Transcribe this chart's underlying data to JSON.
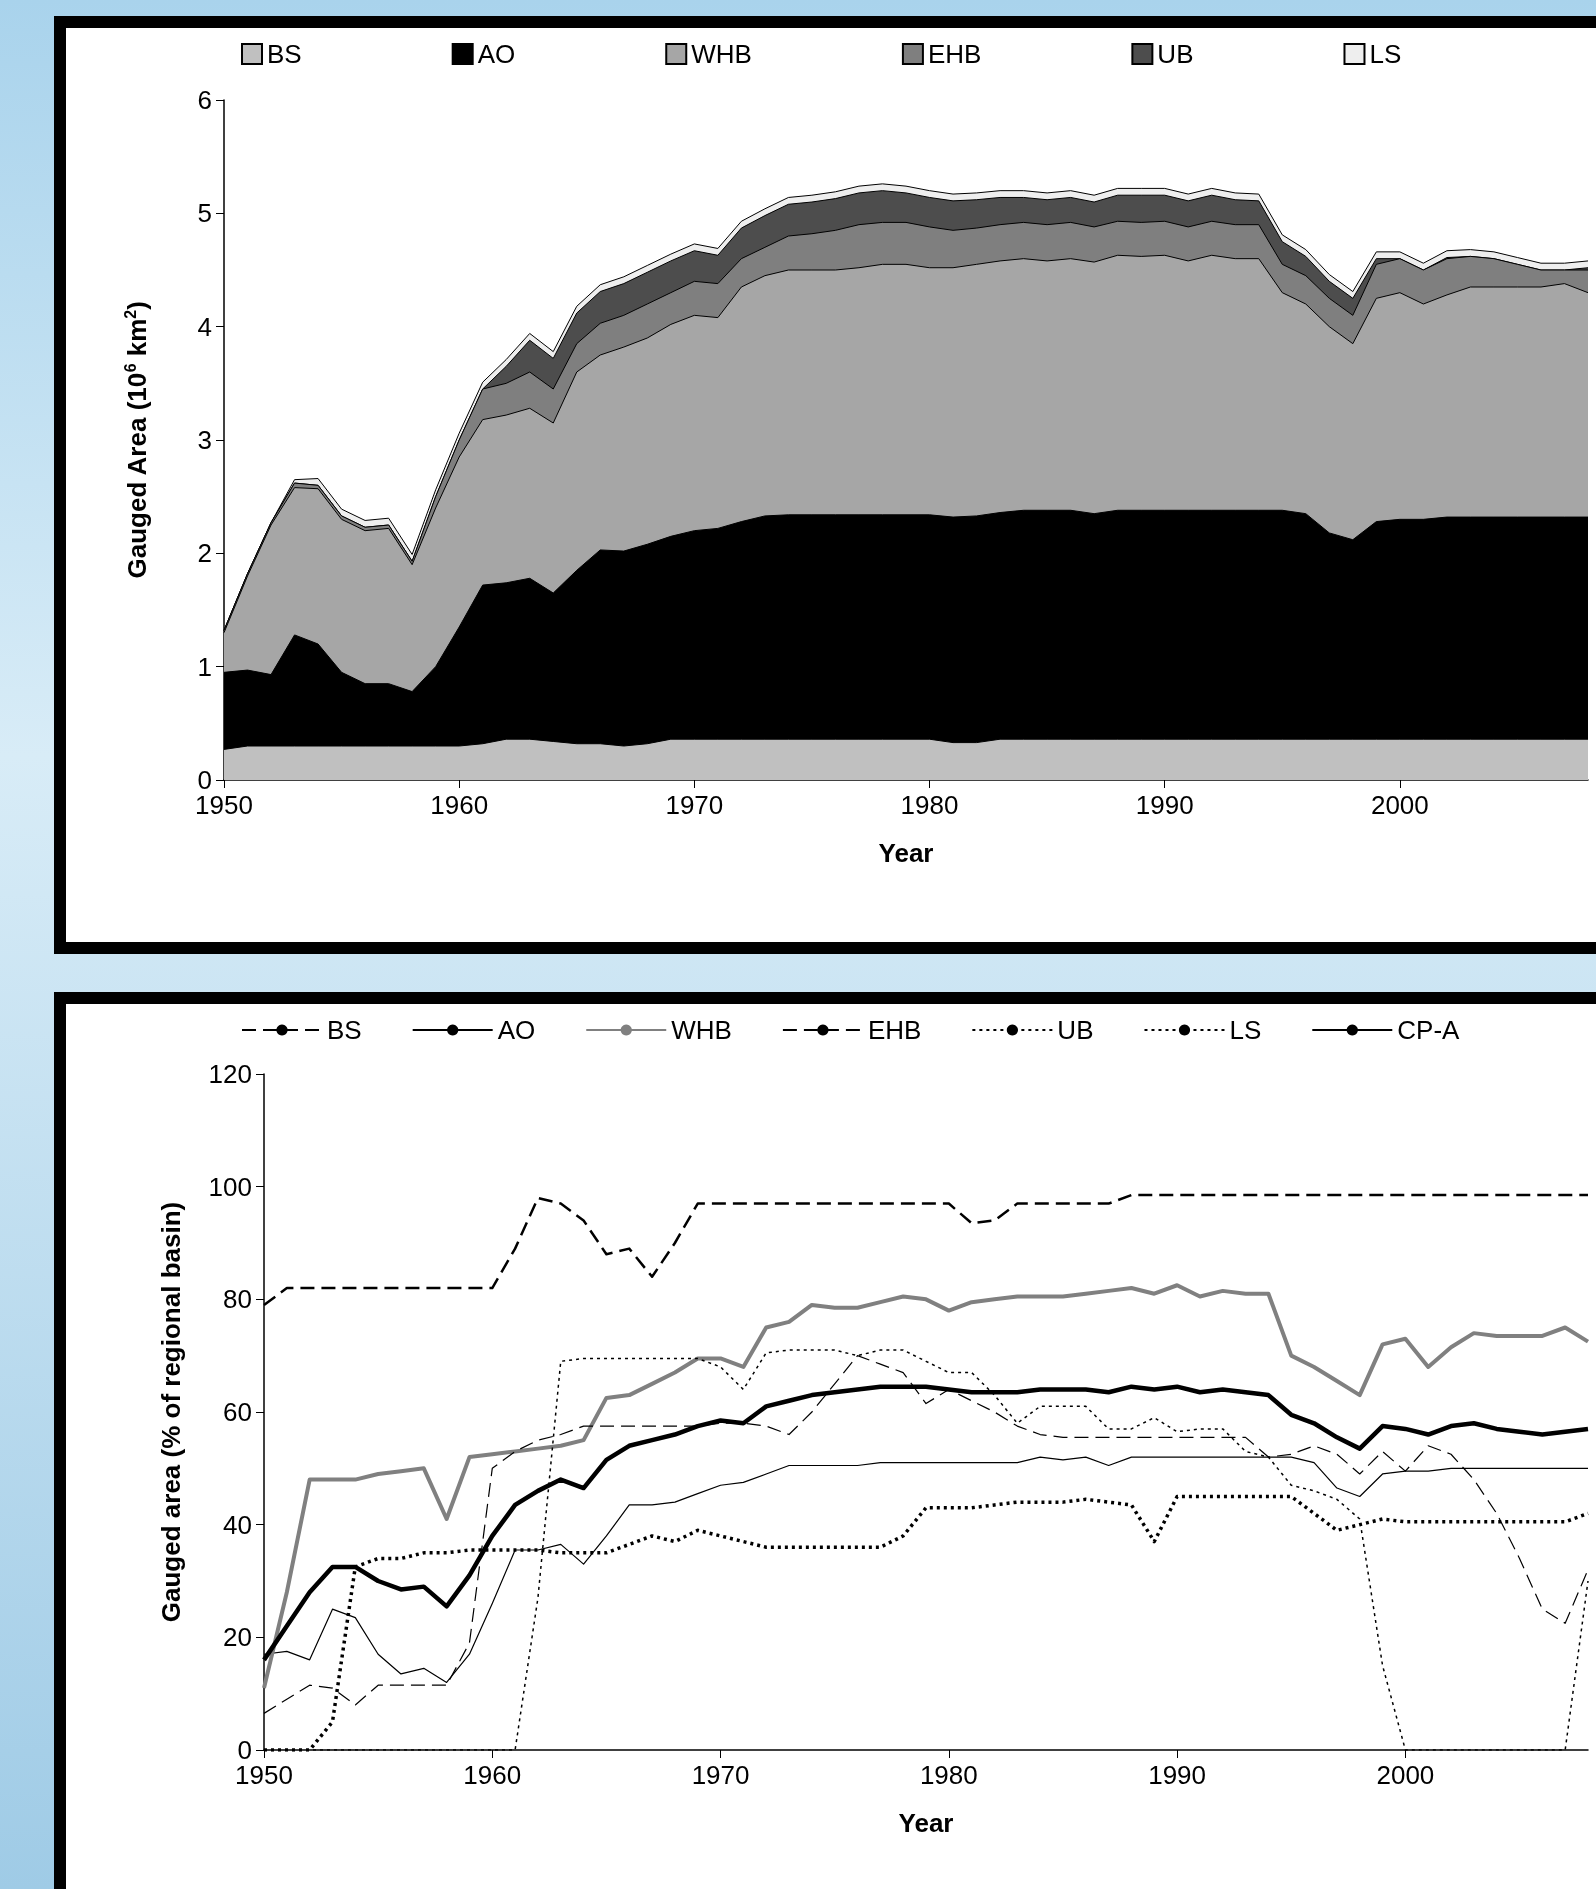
{
  "chart_data": [
    {
      "type": "area",
      "stacked": true,
      "xlabel": "Year",
      "ylabel": "Gauged Area (10$^{6}$ km$^{2}$)",
      "legend": "top",
      "grid": false,
      "marker": "none",
      "xlim": [
        1950,
        2008
      ],
      "xticks": [
        1950,
        1960,
        1970,
        1980,
        1990,
        2000
      ],
      "ylim": [
        0,
        6
      ],
      "yticks": [
        0,
        1,
        2,
        3,
        4,
        5,
        6
      ],
      "x": [
        1950,
        1951,
        1952,
        1953,
        1954,
        1955,
        1956,
        1957,
        1958,
        1959,
        1960,
        1961,
        1962,
        1963,
        1964,
        1965,
        1966,
        1967,
        1968,
        1969,
        1970,
        1971,
        1972,
        1973,
        1974,
        1975,
        1976,
        1977,
        1978,
        1979,
        1980,
        1981,
        1982,
        1983,
        1984,
        1985,
        1986,
        1987,
        1988,
        1989,
        1990,
        1991,
        1992,
        1993,
        1994,
        1995,
        1996,
        1997,
        1998,
        1999,
        2000,
        2001,
        2002,
        2003,
        2004,
        2005,
        2006,
        2007,
        2008
      ],
      "series": [
        {
          "name": "BS",
          "color": "#c0c0c0",
          "values": [
            0.27,
            0.3,
            0.3,
            0.3,
            0.3,
            0.3,
            0.3,
            0.3,
            0.3,
            0.3,
            0.3,
            0.32,
            0.36,
            0.36,
            0.34,
            0.32,
            0.32,
            0.3,
            0.32,
            0.36,
            0.36,
            0.36,
            0.36,
            0.36,
            0.36,
            0.36,
            0.36,
            0.36,
            0.36,
            0.36,
            0.36,
            0.33,
            0.33,
            0.36,
            0.36,
            0.36,
            0.36,
            0.36,
            0.36,
            0.36,
            0.36,
            0.36,
            0.36,
            0.36,
            0.36,
            0.36,
            0.36,
            0.36,
            0.36,
            0.36,
            0.36,
            0.36,
            0.36,
            0.36,
            0.36,
            0.36,
            0.36,
            0.36,
            0.36
          ]
        },
        {
          "name": "AO",
          "color": "#000000",
          "values": [
            0.68,
            0.67,
            0.63,
            0.98,
            0.9,
            0.65,
            0.55,
            0.55,
            0.48,
            0.7,
            1.05,
            1.4,
            1.38,
            1.42,
            1.31,
            1.53,
            1.71,
            1.72,
            1.76,
            1.79,
            1.84,
            1.86,
            1.92,
            1.97,
            1.98,
            1.98,
            1.98,
            1.98,
            1.98,
            1.98,
            1.98,
            1.99,
            2.0,
            2.0,
            2.02,
            2.02,
            2.02,
            1.99,
            2.02,
            2.02,
            2.02,
            2.02,
            2.02,
            2.02,
            2.02,
            2.02,
            1.99,
            1.82,
            1.76,
            1.92,
            1.94,
            1.94,
            1.96,
            1.96,
            1.96,
            1.96,
            1.96,
            1.96,
            1.96
          ]
        },
        {
          "name": "WHB",
          "color": "#a6a6a6",
          "values": [
            0.35,
            0.83,
            1.32,
            1.3,
            1.37,
            1.35,
            1.35,
            1.37,
            1.12,
            1.4,
            1.5,
            1.46,
            1.48,
            1.5,
            1.5,
            1.75,
            1.72,
            1.8,
            1.82,
            1.87,
            1.9,
            1.86,
            2.07,
            2.12,
            2.16,
            2.16,
            2.16,
            2.18,
            2.21,
            2.21,
            2.18,
            2.2,
            2.22,
            2.22,
            2.22,
            2.2,
            2.22,
            2.22,
            2.25,
            2.24,
            2.25,
            2.2,
            2.25,
            2.22,
            2.22,
            1.92,
            1.85,
            1.82,
            1.73,
            1.97,
            2.0,
            1.9,
            1.96,
            2.03,
            2.03,
            2.03,
            2.03,
            2.06,
            1.98
          ]
        },
        {
          "name": "EHB",
          "color": "#7f7f7f",
          "values": [
            0.02,
            0.02,
            0.02,
            0.04,
            0.03,
            0.03,
            0.03,
            0.03,
            0.03,
            0.1,
            0.15,
            0.27,
            0.28,
            0.32,
            0.3,
            0.25,
            0.28,
            0.28,
            0.3,
            0.28,
            0.3,
            0.3,
            0.25,
            0.25,
            0.3,
            0.32,
            0.35,
            0.38,
            0.37,
            0.37,
            0.36,
            0.33,
            0.32,
            0.32,
            0.32,
            0.32,
            0.32,
            0.31,
            0.3,
            0.3,
            0.3,
            0.3,
            0.3,
            0.3,
            0.3,
            0.25,
            0.25,
            0.25,
            0.25,
            0.3,
            0.3,
            0.3,
            0.32,
            0.27,
            0.25,
            0.2,
            0.15,
            0.12,
            0.2
          ]
        },
        {
          "name": "UB",
          "color": "#4d4d4d",
          "values": [
            0,
            0,
            0,
            0,
            0,
            0,
            0,
            0,
            0,
            0,
            0,
            0,
            0.15,
            0.28,
            0.27,
            0.27,
            0.28,
            0.28,
            0.28,
            0.28,
            0.27,
            0.25,
            0.27,
            0.28,
            0.28,
            0.28,
            0.28,
            0.28,
            0.28,
            0.26,
            0.26,
            0.26,
            0.25,
            0.24,
            0.22,
            0.22,
            0.22,
            0.22,
            0.23,
            0.24,
            0.23,
            0.23,
            0.23,
            0.22,
            0.21,
            0.2,
            0.17,
            0.15,
            0.15,
            0.05,
            0,
            0,
            0.01,
            0,
            0,
            0,
            0,
            0,
            0.02
          ]
        },
        {
          "name": "LS",
          "color": "#eeeeee",
          "values": [
            0,
            0,
            0,
            0.03,
            0.06,
            0.06,
            0.06,
            0.06,
            0.06,
            0.06,
            0.06,
            0.06,
            0.06,
            0.06,
            0.06,
            0.06,
            0.06,
            0.06,
            0.06,
            0.06,
            0.06,
            0.06,
            0.06,
            0.06,
            0.06,
            0.06,
            0.06,
            0.06,
            0.06,
            0.06,
            0.06,
            0.06,
            0.06,
            0.06,
            0.06,
            0.06,
            0.06,
            0.06,
            0.06,
            0.06,
            0.06,
            0.06,
            0.06,
            0.06,
            0.06,
            0.06,
            0.06,
            0.06,
            0.06,
            0.06,
            0.06,
            0.06,
            0.06,
            0.06,
            0.06,
            0.06,
            0.06,
            0.06,
            0.06
          ]
        }
      ]
    },
    {
      "type": "line",
      "xlabel": "Year",
      "ylabel": "Gauged area (% of regional basin)",
      "legend": "top",
      "grid": false,
      "marker": "none",
      "xlim": [
        1950,
        2008
      ],
      "xticks": [
        1950,
        1960,
        1970,
        1980,
        1990,
        2000
      ],
      "ylim": [
        0,
        120
      ],
      "yticks": [
        0,
        20,
        40,
        60,
        80,
        100,
        120
      ],
      "x": [
        1950,
        1951,
        1952,
        1953,
        1954,
        1955,
        1956,
        1957,
        1958,
        1959,
        1960,
        1961,
        1962,
        1963,
        1964,
        1965,
        1966,
        1967,
        1968,
        1969,
        1970,
        1971,
        1972,
        1973,
        1974,
        1975,
        1976,
        1977,
        1978,
        1979,
        1980,
        1981,
        1982,
        1983,
        1984,
        1985,
        1986,
        1987,
        1988,
        1989,
        1990,
        1991,
        1992,
        1993,
        1994,
        1995,
        1996,
        1997,
        1998,
        1999,
        2000,
        2001,
        2002,
        2003,
        2004,
        2005,
        2006,
        2007,
        2008
      ],
      "series": [
        {
          "name": "BS",
          "color": "#000000",
          "line_style": "dashed",
          "values": [
            79,
            82,
            82,
            82,
            82,
            82,
            82,
            82,
            82,
            82,
            82,
            89,
            98,
            97,
            94,
            88,
            89,
            84,
            90,
            97,
            97,
            97,
            97,
            97,
            97,
            97,
            97,
            97,
            97,
            97,
            97,
            93.5,
            94,
            97,
            97,
            97,
            97,
            97,
            98.5,
            98.5,
            98.5,
            98.5,
            98.5,
            98.5,
            98.5,
            98.5,
            98.5,
            98.5,
            98.5,
            98.5,
            98.5,
            98.5,
            98.5,
            98.5,
            98.5,
            98.5,
            98.5,
            98.5,
            98.5
          ]
        },
        {
          "name": "AO",
          "color": "#000000",
          "line_style": "solid",
          "values": [
            17,
            17.5,
            16,
            25,
            23.5,
            17,
            13.5,
            14.5,
            12,
            17,
            26,
            35.5,
            35.5,
            36.5,
            33,
            38,
            43.5,
            43.5,
            44,
            45.5,
            47,
            47.5,
            49,
            50.5,
            50.5,
            50.5,
            50.5,
            51,
            51,
            51,
            51,
            51,
            51,
            51,
            52,
            51.5,
            52,
            50.5,
            52,
            52,
            52,
            52,
            52,
            52,
            52,
            52,
            51,
            46.5,
            45,
            49,
            49.5,
            49.5,
            50,
            50,
            50,
            50,
            50,
            50,
            50
          ]
        },
        {
          "name": "WHB",
          "color": "#808080",
          "line_style": "solid",
          "values": [
            11,
            28,
            48,
            48,
            48,
            49,
            49.5,
            50,
            41,
            52,
            52.5,
            53,
            53.5,
            54,
            55,
            62.5,
            63,
            65,
            67,
            69.5,
            69.5,
            68,
            75,
            76,
            79,
            78.5,
            78.5,
            79.5,
            80.5,
            80,
            78,
            79.5,
            80,
            80.5,
            80.5,
            80.5,
            81,
            81.5,
            82,
            81,
            82.5,
            80.5,
            81.5,
            81,
            81,
            70,
            68,
            65.5,
            63,
            72,
            73,
            68,
            71.5,
            74,
            73.5,
            73.5,
            73.5,
            75,
            72.5
          ]
        },
        {
          "name": "EHB",
          "color": "#000000",
          "line_style": "dashed",
          "values": [
            6.5,
            9,
            11.5,
            11,
            8,
            11.5,
            11.5,
            11.5,
            11.5,
            19,
            50,
            53,
            55,
            56,
            57.5,
            57.5,
            57.5,
            57.5,
            57.5,
            57.5,
            58,
            58,
            57.5,
            56,
            60,
            65,
            70,
            68.5,
            67,
            61.5,
            64,
            62,
            60,
            57.5,
            56,
            55.5,
            55.5,
            55.5,
            55.5,
            55.5,
            55.5,
            55.5,
            55.5,
            55.5,
            52,
            52.5,
            54,
            52.5,
            49,
            53,
            49.5,
            54,
            52.5,
            48,
            42,
            34,
            25,
            22.5,
            32
          ]
        },
        {
          "name": "UB",
          "color": "#000000",
          "line_style": "dotted",
          "values": [
            0,
            0,
            0,
            0,
            0,
            0,
            0,
            0,
            0,
            0,
            0,
            0,
            27,
            69,
            69.5,
            69.5,
            69.5,
            69.5,
            69.5,
            69.5,
            68,
            64,
            70.5,
            71,
            71,
            71,
            70,
            71,
            71,
            69,
            67,
            67,
            63,
            58,
            61,
            61,
            61,
            57,
            57,
            59,
            56.5,
            57,
            57,
            53,
            52,
            47,
            46,
            44.5,
            41,
            15,
            0,
            0,
            0,
            0,
            0,
            0,
            0,
            0,
            30
          ]
        },
        {
          "name": "LS",
          "color": "#000000",
          "line_style": "dotted",
          "values": [
            0,
            0,
            0,
            5,
            32.5,
            34,
            34,
            35,
            35,
            35.5,
            35.5,
            35.5,
            35.5,
            35,
            35,
            35,
            36.5,
            38,
            37,
            39,
            38,
            37,
            36,
            36,
            36,
            36,
            36,
            36,
            38,
            43,
            43,
            43,
            43.5,
            44,
            44,
            44,
            44.5,
            44,
            43.5,
            37,
            45,
            45,
            45,
            45,
            45,
            45,
            42,
            39,
            40,
            41,
            40.5,
            40.5,
            40.5,
            40.5,
            40.5,
            40.5,
            40.5,
            40.5,
            42
          ]
        },
        {
          "name": "CP-A",
          "color": "#000000",
          "line_style": "solid",
          "values": [
            16,
            22,
            28,
            32.5,
            32.5,
            30,
            28.5,
            29,
            25.5,
            31,
            38,
            43.5,
            46,
            48,
            46.5,
            51.5,
            54,
            55,
            56,
            57.5,
            58.5,
            58,
            61,
            62,
            63,
            63.5,
            64,
            64.5,
            64.5,
            64.5,
            64,
            63.5,
            63.5,
            63.5,
            64,
            64,
            64,
            63.5,
            64.5,
            64,
            64.5,
            63.5,
            64,
            63.5,
            63,
            59.5,
            58,
            55.5,
            53.5,
            57.5,
            57,
            56,
            57.5,
            58,
            57,
            56.5,
            56,
            56.5,
            57
          ]
        }
      ]
    }
  ]
}
